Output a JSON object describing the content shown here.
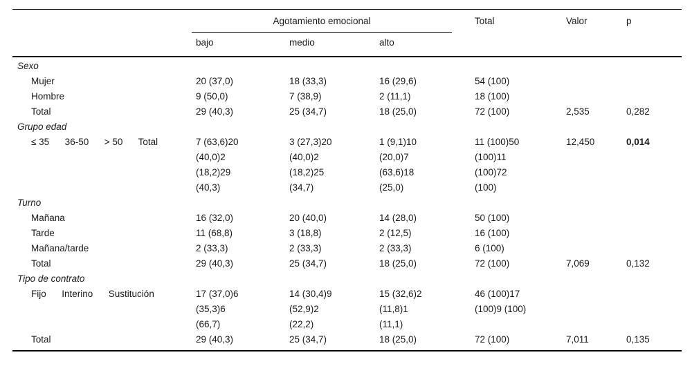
{
  "table": {
    "header": {
      "span_label": "Agotamiento emocional",
      "sub_columns": [
        "bajo",
        "medio",
        "alto"
      ],
      "total_label": "Total",
      "valor_label": "Valor",
      "p_label": "p"
    },
    "rows": [
      {
        "type": "section",
        "label": "Sexo",
        "cells": [
          "",
          "",
          "",
          "",
          "",
          ""
        ]
      },
      {
        "type": "item",
        "label": "Mujer",
        "cells": [
          "20 (37,0)",
          "18 (33,3)",
          "16 (29,6)",
          "54 (100)",
          "",
          ""
        ]
      },
      {
        "type": "item",
        "label": "Hombre",
        "cells": [
          "9 (50,0)",
          "7 (38,9)",
          "2 (11,1)",
          "18 (100)",
          "",
          ""
        ]
      },
      {
        "type": "item",
        "label": "Total",
        "cells": [
          "29 (40,3)",
          "25 (34,7)",
          "18 (25,0)",
          "72 (100)",
          "2,535",
          "0,282"
        ]
      },
      {
        "type": "section",
        "label": "Grupo edad",
        "cells": [
          "",
          "",
          "",
          "",
          "",
          ""
        ]
      },
      {
        "type": "item",
        "label": "≤ 35      36-50      > 50      Total",
        "p_bold": true,
        "cells": [
          "7 (63,6)20\n(40,0)2\n(18,2)29\n(40,3)",
          "3 (27,3)20\n(40,0)2\n(18,2)25\n(34,7)",
          "1 (9,1)10\n(20,0)7\n(63,6)18\n(25,0)",
          "11 (100)50\n(100)11\n(100)72\n(100)",
          "12,450",
          "0,014"
        ]
      },
      {
        "type": "section",
        "label": "Turno",
        "cells": [
          "",
          "",
          "",
          "",
          "",
          ""
        ]
      },
      {
        "type": "item",
        "label": "Mañana",
        "cells": [
          "16 (32,0)",
          "20 (40,0)",
          "14 (28,0)",
          "50 (100)",
          "",
          ""
        ]
      },
      {
        "type": "item",
        "label": "Tarde",
        "cells": [
          "11 (68,8)",
          "3 (18,8)",
          "2 (12,5)",
          "16 (100)",
          "",
          ""
        ]
      },
      {
        "type": "item",
        "label": "Mañana/tarde",
        "cells": [
          "2 (33,3)",
          "2 (33,3)",
          "2 (33,3)",
          "6 (100)",
          "",
          ""
        ]
      },
      {
        "type": "item",
        "label": "Total",
        "cells": [
          "29 (40,3)",
          "25 (34,7)",
          "18 (25,0)",
          "72 (100)",
          "7,069",
          "0,132"
        ]
      },
      {
        "type": "section",
        "label": "Tipo de contrato",
        "cells": [
          "",
          "",
          "",
          "",
          "",
          ""
        ]
      },
      {
        "type": "item",
        "label": "Fijo      Interino      Sustitución",
        "cells": [
          "17 (37,0)6\n(35,3)6\n(66,7)",
          "14 (30,4)9\n(52,9)2\n(22,2)",
          "15 (32,6)2\n(11,8)1\n(11,1)",
          "46 (100)17\n(100)9 (100)",
          "",
          ""
        ]
      },
      {
        "type": "item",
        "label": "Total",
        "cells": [
          "29 (40,3)",
          "25 (34,7)",
          "18 (25,0)",
          "72 (100)",
          "7,011",
          "0,135"
        ]
      }
    ]
  }
}
